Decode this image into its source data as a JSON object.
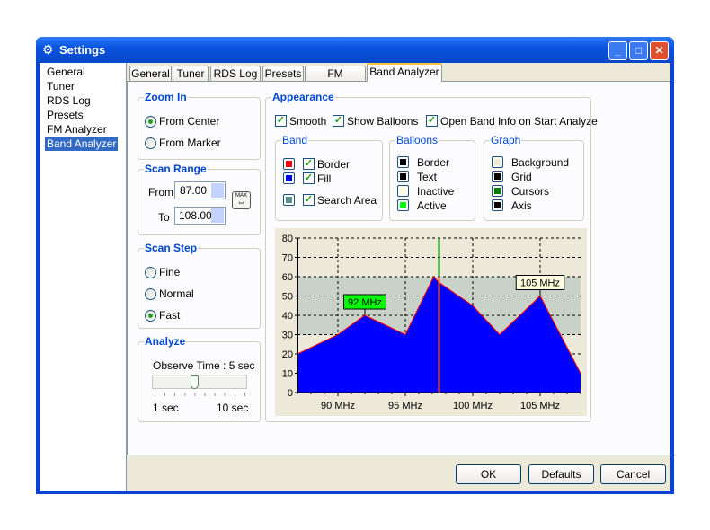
{
  "window": {
    "title": "Settings",
    "minimize": "_",
    "maximize": "□",
    "close": "✕"
  },
  "sidebar": {
    "items": [
      {
        "label": "General"
      },
      {
        "label": "Tuner"
      },
      {
        "label": "RDS Log"
      },
      {
        "label": "Presets"
      },
      {
        "label": "FM Analyzer"
      },
      {
        "label": "Band Analyzer",
        "selected": true
      }
    ]
  },
  "tabs": [
    {
      "label": "General"
    },
    {
      "label": "Tuner"
    },
    {
      "label": "RDS Log"
    },
    {
      "label": "Presets"
    },
    {
      "label": "FM Analyzer"
    },
    {
      "label": "Band Analyzer",
      "active": true
    }
  ],
  "zoom_in": {
    "title": "Zoom In",
    "options": [
      {
        "label": "From Center",
        "checked": true
      },
      {
        "label": "From Marker",
        "checked": false
      }
    ]
  },
  "scan_range": {
    "title": "Scan Range",
    "from_label": "From",
    "from_value": "87.00",
    "to_label": "To",
    "to_value": "108.00",
    "max_label": "MAX"
  },
  "scan_step": {
    "title": "Scan Step",
    "options": [
      {
        "label": "Fine",
        "checked": false
      },
      {
        "label": "Normal",
        "checked": false
      },
      {
        "label": "Fast",
        "checked": true
      }
    ]
  },
  "analyze": {
    "title": "Analyze",
    "observe_label": "Observe Time : 5 sec",
    "slider_value": 5,
    "slider_min": "1 sec",
    "slider_max": "10 sec"
  },
  "appearance": {
    "title": "Appearance",
    "smooth": "Smooth",
    "show_balloons": "Show Balloons",
    "open_band_info": "Open Band Info on Start Analyze",
    "band": {
      "title": "Band",
      "border": "Border",
      "fill": "Fill",
      "search_area": "Search Area",
      "border_color": "#ff0000",
      "fill_color": "#0000ff",
      "search_color": "#5f9090"
    },
    "balloons": {
      "title": "Balloons",
      "items": [
        {
          "label": "Border",
          "color": "#000000"
        },
        {
          "label": "Text",
          "color": "#000000"
        },
        {
          "label": "Inactive",
          "color": "#ffffe0"
        },
        {
          "label": "Active",
          "color": "#00ff00"
        }
      ]
    },
    "graph": {
      "title": "Graph",
      "items": [
        {
          "label": "Background",
          "color": "#ece9d8"
        },
        {
          "label": "Grid",
          "color": "#000000"
        },
        {
          "label": "Cursors",
          "color": "#008000"
        },
        {
          "label": "Axis",
          "color": "#000000"
        }
      ]
    }
  },
  "chart_data": {
    "type": "area",
    "xlim": [
      87,
      108
    ],
    "ylim": [
      0,
      80
    ],
    "x": [
      87,
      90,
      92,
      95,
      97.1,
      97.5,
      100,
      102,
      105,
      108
    ],
    "y": [
      20,
      30,
      40,
      30,
      60,
      57,
      45,
      30,
      50,
      10
    ],
    "yticks": [
      "0",
      "10",
      "20",
      "30",
      "40",
      "50",
      "60",
      "70",
      "80"
    ],
    "xticks": [
      {
        "v": 90,
        "label": "90 MHz"
      },
      {
        "v": 95,
        "label": "95 MHz"
      },
      {
        "v": 100,
        "label": "100 MHz"
      },
      {
        "v": 105,
        "label": "105 MHz"
      }
    ],
    "search_area": [
      30,
      60
    ],
    "cursor": 97.5,
    "balloons": [
      {
        "x": 92,
        "y": 40,
        "label": "92 MHz",
        "active": true
      },
      {
        "x": 105,
        "y": 50,
        "label": "105 MHz",
        "active": false
      }
    ],
    "grid": true
  },
  "buttons": {
    "ok": "OK",
    "defaults": "Defaults",
    "cancel": "Cancel"
  }
}
